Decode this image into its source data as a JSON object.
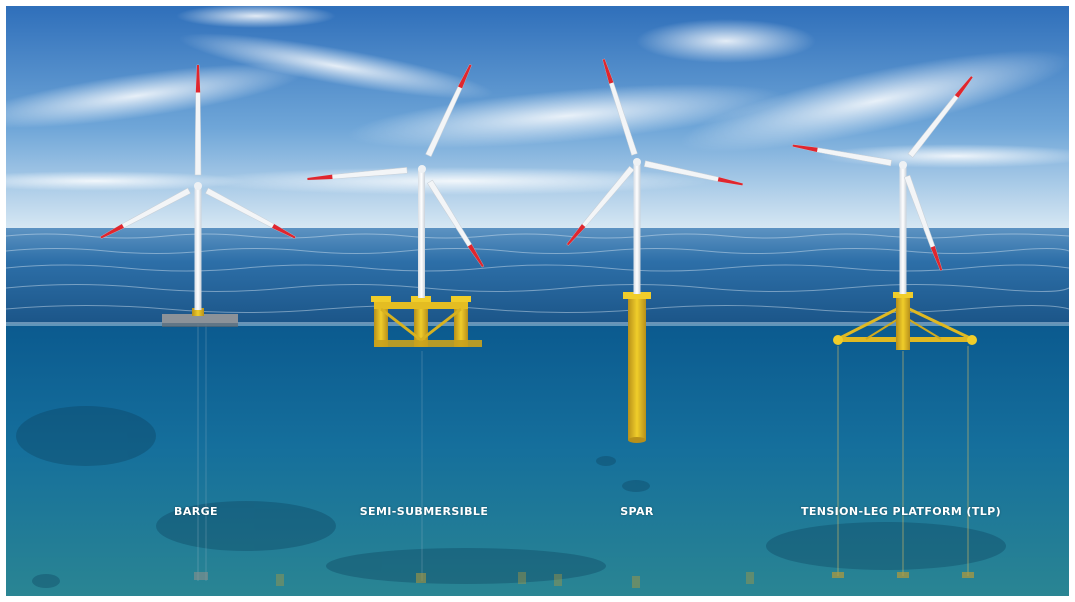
{
  "turbine_types": [
    {
      "id": "barge",
      "label": "BARGE"
    },
    {
      "id": "semi-submersible",
      "label": "SEMI-SUBMERSIBLE"
    },
    {
      "id": "spar",
      "label": "SPAR"
    },
    {
      "id": "tlp",
      "label": "TENSION-LEG PLATFORM (TLP)"
    }
  ],
  "colors": {
    "sky_top": "#2f74c0",
    "sky_bottom": "#cfe3f2",
    "sea_surface": "#2a6da8",
    "underwater_top": "#0d5f94",
    "underwater_bottom": "#2a8aa0",
    "platform_yellow": "#e9c21d",
    "blade_tip_red": "#e0262e",
    "tower_white": "#f4f6f8"
  }
}
